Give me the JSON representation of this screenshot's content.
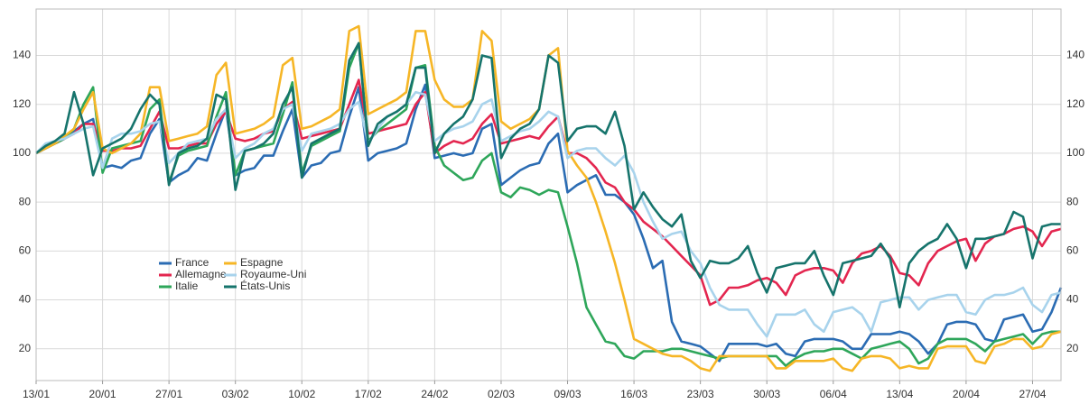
{
  "chart_data": {
    "type": "line",
    "categories": [
      "13/01",
      null,
      null,
      null,
      null,
      null,
      null,
      "20/01",
      null,
      null,
      null,
      null,
      null,
      null,
      "27/01",
      null,
      null,
      null,
      null,
      null,
      null,
      "03/02",
      null,
      null,
      null,
      null,
      null,
      null,
      "10/02",
      null,
      null,
      null,
      null,
      null,
      null,
      "17/02",
      null,
      null,
      null,
      null,
      null,
      null,
      "24/02",
      null,
      null,
      null,
      null,
      null,
      null,
      "02/03",
      null,
      null,
      null,
      null,
      null,
      null,
      "09/03",
      null,
      null,
      null,
      null,
      null,
      null,
      "16/03",
      null,
      null,
      null,
      null,
      null,
      null,
      "23/03",
      null,
      null,
      null,
      null,
      null,
      null,
      "30/03",
      null,
      null,
      null,
      null,
      null,
      null,
      "06/04",
      null,
      null,
      null,
      null,
      null,
      null,
      "13/04",
      null,
      null,
      null,
      null,
      null,
      null,
      "20/04",
      null,
      null,
      null,
      null,
      null,
      null,
      "27/04",
      null,
      null,
      null
    ],
    "series": [
      {
        "name": "France",
        "color": "#2b6cb3",
        "values": [
          100,
          102,
          104,
          106,
          109,
          112,
          114,
          94,
          95,
          94,
          97,
          98,
          108,
          114,
          88,
          91,
          93,
          98,
          97,
          108,
          118,
          91,
          93,
          94,
          99,
          99,
          109,
          118,
          90,
          95,
          96,
          100,
          101,
          115,
          127,
          97,
          100,
          101,
          102,
          104,
          118,
          128,
          98,
          99,
          100,
          99,
          100,
          110,
          112,
          87,
          90,
          93,
          95,
          96,
          104,
          108,
          84,
          87,
          89,
          91,
          83,
          83,
          80,
          75,
          65,
          53,
          56,
          31,
          23,
          22,
          21,
          18,
          15,
          22,
          22,
          22,
          22,
          21,
          22,
          18,
          17,
          23,
          24,
          24,
          24,
          23,
          20,
          20,
          26,
          26,
          26,
          27,
          26,
          23,
          18,
          22,
          30,
          31,
          31,
          30,
          24,
          23,
          32,
          33,
          34,
          27,
          28,
          35,
          45
        ]
      },
      {
        "name": "Allemagne",
        "color": "#e3264f",
        "values": [
          100,
          102,
          104,
          106,
          108,
          112,
          112,
          101,
          101,
          102,
          102,
          103,
          110,
          117,
          102,
          102,
          103,
          104,
          104,
          112,
          117,
          106,
          105,
          106,
          108,
          109,
          118,
          121,
          106,
          107,
          108,
          109,
          110,
          120,
          130,
          108,
          109,
          110,
          111,
          112,
          120,
          125,
          100,
          103,
          105,
          104,
          106,
          112,
          116,
          104,
          105,
          106,
          107,
          106,
          111,
          115,
          100,
          100,
          98,
          94,
          88,
          86,
          80,
          77,
          72,
          69,
          66,
          62,
          58,
          54,
          50,
          38,
          40,
          45,
          45,
          46,
          48,
          49,
          47,
          42,
          50,
          52,
          53,
          53,
          52,
          47,
          55,
          59,
          60,
          62,
          58,
          51,
          50,
          46,
          55,
          60,
          62,
          64,
          65,
          56,
          63,
          66,
          67,
          69,
          70,
          68,
          62,
          68,
          69
        ]
      },
      {
        "name": "Italie",
        "color": "#2ea65a",
        "values": [
          100,
          102,
          104,
          106,
          110,
          120,
          127,
          92,
          102,
          103,
          104,
          105,
          118,
          122,
          88,
          99,
          101,
          102,
          103,
          115,
          125,
          91,
          101,
          102,
          103,
          104,
          116,
          129,
          92,
          103,
          105,
          107,
          109,
          135,
          145,
          105,
          109,
          112,
          115,
          118,
          135,
          136,
          103,
          95,
          92,
          89,
          90,
          97,
          100,
          84,
          82,
          86,
          85,
          83,
          85,
          84,
          70,
          55,
          37,
          30,
          23,
          22,
          17,
          16,
          19,
          19,
          19,
          20,
          20,
          19,
          18,
          17,
          16,
          17,
          17,
          17,
          17,
          17,
          17,
          13,
          16,
          18,
          19,
          19,
          20,
          20,
          18,
          16,
          20,
          21,
          22,
          23,
          20,
          14,
          16,
          22,
          24,
          24,
          24,
          22,
          19,
          23,
          24,
          25,
          26,
          22,
          26,
          27,
          27
        ]
      },
      {
        "name": "Espagne",
        "color": "#f6b626",
        "values": [
          100,
          102,
          104,
          107,
          110,
          118,
          125,
          102,
          100,
          102,
          104,
          108,
          127,
          127,
          105,
          106,
          107,
          108,
          111,
          132,
          137,
          108,
          109,
          110,
          112,
          115,
          136,
          139,
          110,
          111,
          113,
          115,
          118,
          150,
          152,
          116,
          118,
          120,
          122,
          125,
          150,
          150,
          130,
          122,
          119,
          119,
          122,
          150,
          146,
          113,
          110,
          112,
          114,
          118,
          140,
          143,
          101,
          95,
          90,
          80,
          68,
          55,
          40,
          24,
          22,
          20,
          18,
          17,
          17,
          15,
          12,
          11,
          17,
          17,
          17,
          17,
          17,
          17,
          12,
          12,
          15,
          15,
          15,
          15,
          16,
          12,
          11,
          16,
          17,
          17,
          16,
          12,
          13,
          12,
          12,
          20,
          21,
          21,
          21,
          15,
          14,
          21,
          22,
          24,
          24,
          20,
          21,
          26,
          27
        ]
      },
      {
        "name": "Royaume-Uni",
        "color": "#a8d3ec",
        "values": [
          100,
          104,
          105,
          106,
          108,
          110,
          111,
          94,
          106,
          108,
          108,
          109,
          112,
          113,
          96,
          100,
          104,
          105,
          106,
          114,
          118,
          98,
          102,
          104,
          108,
          110,
          118,
          120,
          101,
          108,
          109,
          110,
          112,
          118,
          121,
          104,
          110,
          115,
          117,
          120,
          125,
          124,
          105,
          108,
          110,
          111,
          113,
          120,
          122,
          105,
          107,
          109,
          110,
          113,
          117,
          115,
          98,
          101,
          102,
          102,
          98,
          95,
          99,
          92,
          80,
          72,
          65,
          67,
          68,
          60,
          55,
          45,
          38,
          36,
          36,
          36,
          30,
          25,
          34,
          34,
          34,
          36,
          30,
          27,
          35,
          36,
          37,
          34,
          27,
          39,
          40,
          41,
          41,
          36,
          40,
          41,
          42,
          42,
          35,
          34,
          40,
          42,
          42,
          43,
          45,
          38,
          35,
          42,
          43
        ]
      },
      {
        "name": "États-Unis",
        "color": "#16746c",
        "values": [
          100,
          103,
          105,
          108,
          125,
          112,
          91,
          102,
          104,
          106,
          110,
          118,
          124,
          120,
          87,
          100,
          102,
          103,
          106,
          124,
          122,
          85,
          101,
          102,
          104,
          108,
          120,
          127,
          90,
          104,
          106,
          108,
          110,
          138,
          145,
          103,
          112,
          115,
          117,
          120,
          135,
          135,
          100,
          108,
          112,
          115,
          122,
          140,
          139,
          98,
          106,
          110,
          112,
          118,
          140,
          137,
          105,
          110,
          111,
          111,
          108,
          117,
          103,
          77,
          84,
          78,
          73,
          70,
          75,
          56,
          49,
          56,
          55,
          55,
          57,
          62,
          51,
          43,
          53,
          54,
          55,
          55,
          60,
          50,
          42,
          55,
          56,
          57,
          58,
          63,
          57,
          37,
          55,
          60,
          63,
          65,
          71,
          65,
          53,
          65,
          65,
          66,
          67,
          76,
          74,
          57,
          70,
          71,
          71
        ]
      }
    ],
    "ylim": [
      7,
      159
    ],
    "yticks": [
      20,
      40,
      60,
      80,
      100,
      120,
      140
    ],
    "grid": true
  }
}
